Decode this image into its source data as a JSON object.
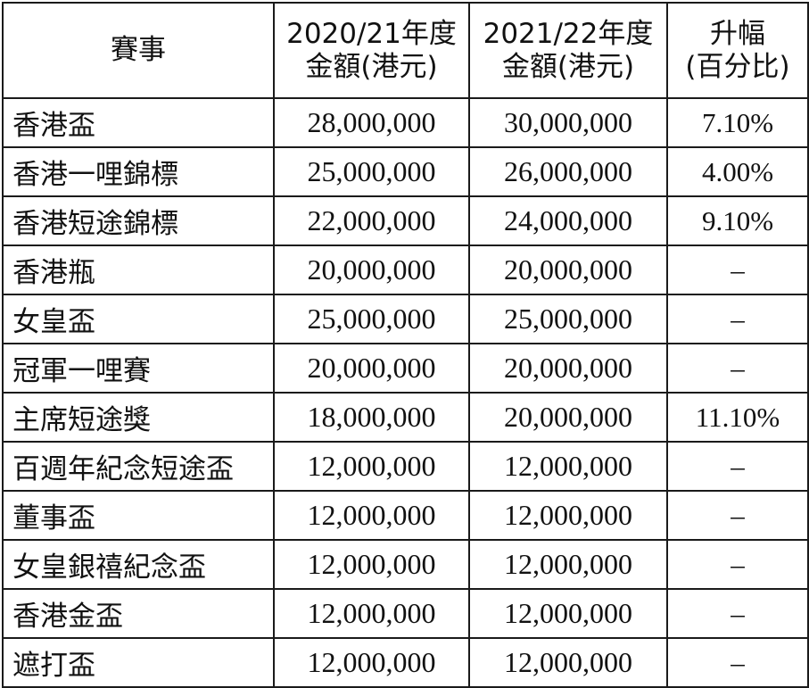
{
  "header": {
    "event": "賽事",
    "col2_line1": "2020/21年度",
    "col2_line2": "金額(港元)",
    "col3_line1": "2021/22年度",
    "col3_line2": "金額(港元)",
    "col4_line1": "升幅",
    "col4_line2": "(百分比)"
  },
  "rows": [
    {
      "event": "香港盃",
      "prev": "28,000,000",
      "curr": "30,000,000",
      "change": "7.10%"
    },
    {
      "event": "香港一哩錦標",
      "prev": "25,000,000",
      "curr": "26,000,000",
      "change": "4.00%"
    },
    {
      "event": "香港短途錦標",
      "prev": "22,000,000",
      "curr": "24,000,000",
      "change": "9.10%"
    },
    {
      "event": "香港瓶",
      "prev": "20,000,000",
      "curr": "20,000,000",
      "change": "–"
    },
    {
      "event": "女皇盃",
      "prev": "25,000,000",
      "curr": "25,000,000",
      "change": "–"
    },
    {
      "event": "冠軍一哩賽",
      "prev": "20,000,000",
      "curr": "20,000,000",
      "change": "–"
    },
    {
      "event": "主席短途獎",
      "prev": "18,000,000",
      "curr": "20,000,000",
      "change": "11.10%"
    },
    {
      "event": "百週年紀念短途盃",
      "prev": "12,000,000",
      "curr": "12,000,000",
      "change": "–"
    },
    {
      "event": "董事盃",
      "prev": "12,000,000",
      "curr": "12,000,000",
      "change": "–"
    },
    {
      "event": "女皇銀禧紀念盃",
      "prev": "12,000,000",
      "curr": "12,000,000",
      "change": "–"
    },
    {
      "event": "香港金盃",
      "prev": "12,000,000",
      "curr": "12,000,000",
      "change": "–"
    },
    {
      "event": "遮打盃",
      "prev": "12,000,000",
      "curr": "12,000,000",
      "change": "–"
    }
  ]
}
